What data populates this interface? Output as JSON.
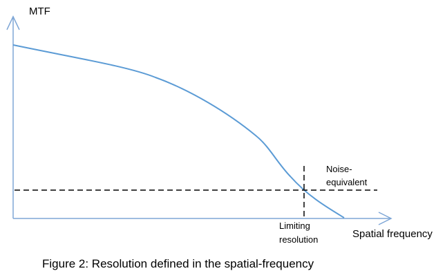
{
  "diagram": {
    "y_axis_label": "MTF",
    "x_axis_label": "Spatial frequency",
    "noise_label_line1": "Noise-",
    "noise_label_line2": "equivalent",
    "limit_label_line1": "Limiting",
    "limit_label_line2": "resolution",
    "caption": "Figure 2: Resolution defined in the spatial-frequency"
  },
  "colors": {
    "axis": "#7ea6d6",
    "curve": "#5b9bd5",
    "dashed": "#000000",
    "text": "#000000"
  }
}
